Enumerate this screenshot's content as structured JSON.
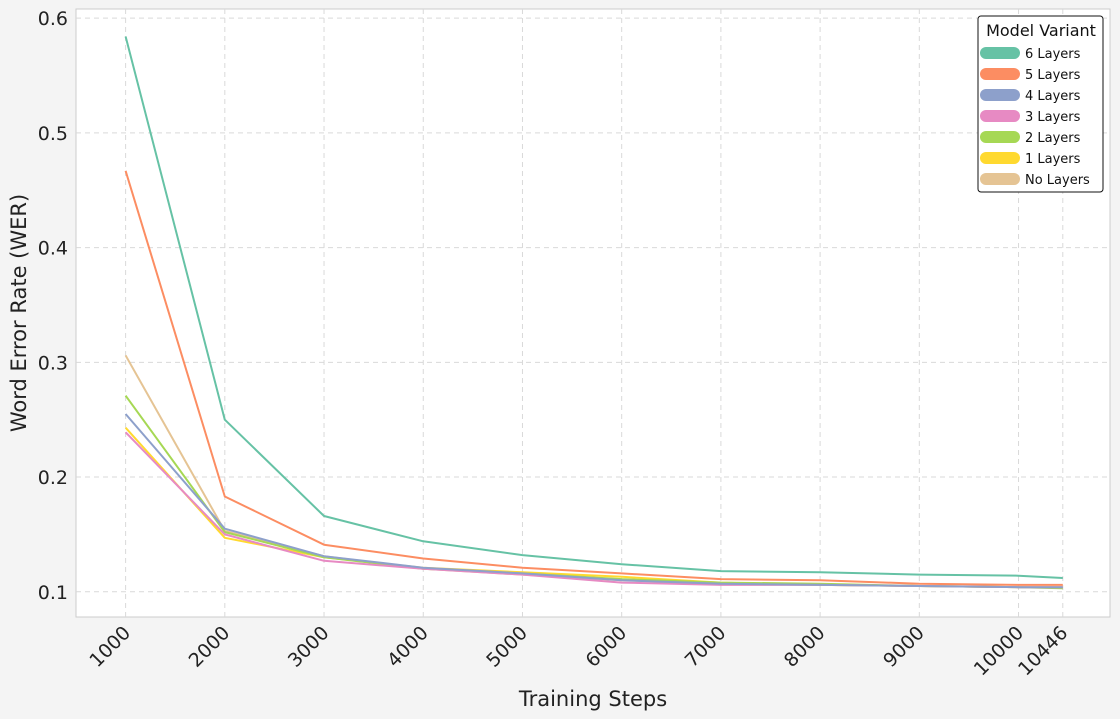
{
  "chart_data": {
    "type": "line",
    "xlabel": "Training Steps",
    "ylabel": "Word Error Rate (WER)",
    "x": [
      1000,
      2000,
      3000,
      4000,
      5000,
      6000,
      7000,
      8000,
      9000,
      10000,
      10446
    ],
    "x_tick_labels": [
      "1000",
      "2000",
      "3000",
      "4000",
      "5000",
      "6000",
      "7000",
      "8000",
      "9000",
      "10000",
      "10446"
    ],
    "y_ticks": [
      0.1,
      0.2,
      0.3,
      0.4,
      0.5,
      0.6
    ],
    "y_tick_labels": [
      "0.1",
      "0.2",
      "0.3",
      "0.4",
      "0.5",
      "0.6"
    ],
    "ylim": [
      0.078,
      0.608
    ],
    "grid": true,
    "legend_title": "Model Variant",
    "legend_position": "top-right",
    "series": [
      {
        "name": "6 Layers",
        "color": "#66c2a5",
        "values": [
          0.584,
          0.25,
          0.166,
          0.144,
          0.132,
          0.124,
          0.118,
          0.117,
          0.115,
          0.114,
          0.112
        ]
      },
      {
        "name": "5 Layers",
        "color": "#fc8d62",
        "values": [
          0.467,
          0.183,
          0.141,
          0.129,
          0.121,
          0.116,
          0.111,
          0.11,
          0.107,
          0.106,
          0.106
        ]
      },
      {
        "name": "4 Layers",
        "color": "#8da0cb",
        "values": [
          0.255,
          0.155,
          0.131,
          0.121,
          0.116,
          0.11,
          0.107,
          0.106,
          0.105,
          0.104,
          0.104
        ]
      },
      {
        "name": "3 Layers",
        "color": "#e78ac3",
        "values": [
          0.239,
          0.15,
          0.127,
          0.12,
          0.115,
          0.108,
          0.106,
          0.106,
          0.105,
          0.104,
          0.104
        ]
      },
      {
        "name": "2 Layers",
        "color": "#a6d854",
        "values": [
          0.271,
          0.152,
          0.13,
          0.12,
          0.116,
          0.111,
          0.108,
          0.107,
          0.105,
          0.104,
          0.103
        ]
      },
      {
        "name": "1 Layers",
        "color": "#ffd92f",
        "values": [
          0.243,
          0.147,
          0.13,
          0.121,
          0.117,
          0.113,
          0.108,
          0.106,
          0.105,
          0.104,
          0.104
        ]
      },
      {
        "name": "No Layers",
        "color": "#e5c494",
        "values": [
          0.306,
          0.153,
          0.131,
          0.12,
          0.115,
          0.11,
          0.107,
          0.106,
          0.105,
          0.104,
          0.104
        ]
      }
    ]
  }
}
